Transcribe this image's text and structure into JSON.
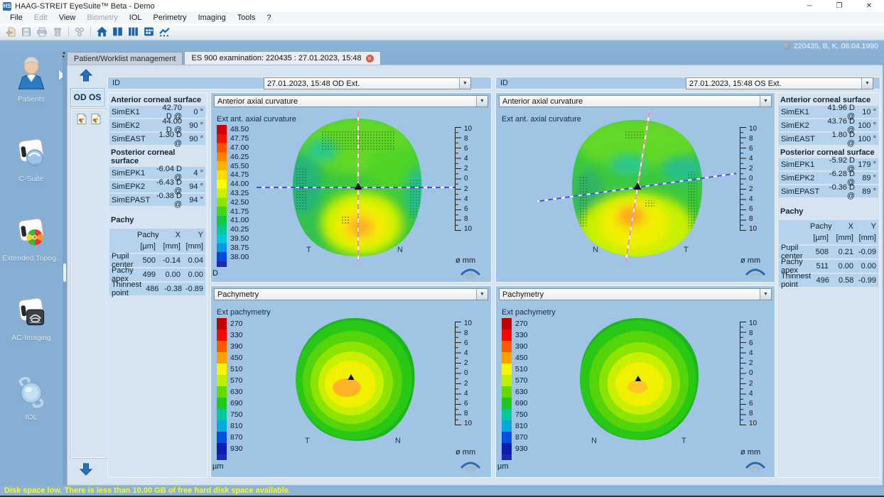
{
  "window": {
    "title": "HAAG-STREIT EyeSuite™   Beta   -   Demo",
    "logo": "HS",
    "controls": {
      "minimize": "─",
      "maximize": "❐",
      "close": "✕"
    }
  },
  "menu": {
    "items": [
      {
        "label": "File",
        "enabled": true
      },
      {
        "label": "Edit",
        "enabled": false
      },
      {
        "label": "View",
        "enabled": true
      },
      {
        "label": "Biometry",
        "enabled": false
      },
      {
        "label": "IOL",
        "enabled": true
      },
      {
        "label": "Perimetry",
        "enabled": true
      },
      {
        "label": "Imaging",
        "enabled": true
      },
      {
        "label": "Tools",
        "enabled": true
      },
      {
        "label": "?",
        "enabled": true
      }
    ]
  },
  "patient_bar": {
    "info": "220435, B, K, 08.04.1990"
  },
  "tabs": {
    "worklist": "Patient/Worklist management",
    "exam": "ES 900 examination: 220435 : 27.01.2023, 15:48"
  },
  "sidebar": {
    "items": [
      {
        "label": "Patients"
      },
      {
        "label": "C-Suite"
      },
      {
        "label": "Extended Topog.."
      },
      {
        "label": "AC-Imaging"
      },
      {
        "label": "IOL"
      }
    ]
  },
  "nav": {
    "od_os": "OD OS"
  },
  "od": {
    "id_label": "ID",
    "exam": "27.01.2023, 15:48 OD Ext.",
    "anterior_title": "Anterior corneal surface",
    "anterior": [
      {
        "name": "SimEK1",
        "value": "42.70 D @",
        "angle": "0 °"
      },
      {
        "name": "SimEK2",
        "value": "44.00 D @",
        "angle": "90 °"
      },
      {
        "name": "SimEAST",
        "value": "1.30 D @",
        "angle": "90 °"
      }
    ],
    "posterior_title": "Posterior corneal surface",
    "posterior": [
      {
        "name": "SimEPK1",
        "value": "-6.04 D @",
        "angle": "4 °"
      },
      {
        "name": "SimEPK2",
        "value": "-6.43 D @",
        "angle": "94 °"
      },
      {
        "name": "SimEPAST",
        "value": "-0.38 D @",
        "angle": "94 °"
      }
    ],
    "pachy_title": "Pachy",
    "pachy_cols": {
      "c1": "Pachy",
      "c2": "X",
      "c3": "Y",
      "u1": "[µm]",
      "u2": "[mm]",
      "u3": "[mm]"
    },
    "pachy": [
      {
        "name": "Pupil center",
        "p": "500",
        "x": "-0.14",
        "y": "0.04"
      },
      {
        "name": "Pachy apex",
        "p": "499",
        "x": "0.00",
        "y": "0.00"
      },
      {
        "name": "Thinnest point",
        "p": "486",
        "x": "-0.38",
        "y": "-0.89"
      }
    ],
    "axial_select": "Anterior axial curvature",
    "axial_title": "Ext ant. axial curvature",
    "pachy_select": "Pachymetry",
    "pachy_map_title": "Ext pachymetry",
    "t_label": "T",
    "n_label": "N"
  },
  "os": {
    "id_label": "ID",
    "exam": "27.01.2023, 15:48 OS Ext.",
    "anterior_title": "Anterior corneal surface",
    "anterior": [
      {
        "name": "SimEK1",
        "value": "41.96 D @",
        "angle": "10 °"
      },
      {
        "name": "SimEK2",
        "value": "43.76 D @",
        "angle": "100 °"
      },
      {
        "name": "SimEAST",
        "value": "1.80 D @",
        "angle": "100 °"
      }
    ],
    "posterior_title": "Posterior corneal surface",
    "posterior": [
      {
        "name": "SimEPK1",
        "value": "-5.92 D @",
        "angle": "179 °"
      },
      {
        "name": "SimEPK2",
        "value": "-6.28 D @",
        "angle": "89 °"
      },
      {
        "name": "SimEPAST",
        "value": "-0.36 D @",
        "angle": "89 °"
      }
    ],
    "pachy_title": "Pachy",
    "pachy_cols": {
      "c1": "Pachy",
      "c2": "X",
      "c3": "Y",
      "u1": "[µm]",
      "u2": "[mm]",
      "u3": "[mm]"
    },
    "pachy": [
      {
        "name": "Pupil center",
        "p": "508",
        "x": "0.21",
        "y": "-0.09"
      },
      {
        "name": "Pachy apex",
        "p": "511",
        "x": "0.00",
        "y": "0.00"
      },
      {
        "name": "Thinnest point",
        "p": "496",
        "x": "0.58",
        "y": "-0.99"
      }
    ],
    "axial_select": "Anterior axial curvature",
    "axial_title": "Ext ant. axial curvature",
    "pachy_select": "Pachymetry",
    "pachy_map_title": "Ext pachymetry",
    "t_label": "T",
    "n_label": "N"
  },
  "scales": {
    "axial": {
      "ticks": [
        "48.50",
        "47.75",
        "47.00",
        "46.25",
        "45.50",
        "44.75",
        "44.00",
        "43.25",
        "42.50",
        "41.75",
        "41.00",
        "40.25",
        "39.50",
        "38.75",
        "38.00"
      ],
      "unit": "D"
    },
    "pachy": {
      "ticks": [
        "270",
        "330",
        "390",
        "450",
        "510",
        "570",
        "630",
        "690",
        "750",
        "810",
        "870",
        "930"
      ],
      "unit": "µm"
    },
    "ruler": {
      "ticks": [
        "10",
        "8",
        "6",
        "4",
        "2",
        "0",
        "2",
        "4",
        "6",
        "8",
        "10"
      ],
      "unit": "ø mm"
    }
  },
  "status_bar": {
    "message": "Disk space low. There is less than 10.00 GB of free hard disk space available."
  },
  "chart_data": [
    {
      "type": "heatmap",
      "eye": "OD",
      "title": "Ext ant. axial curvature",
      "unit": "D",
      "scale_range": [
        38.0,
        48.5
      ],
      "scale_step": 0.75,
      "orientation_labels": [
        "T",
        "N"
      ],
      "axis_unit": "ø mm",
      "axis_range": [
        -10,
        10
      ],
      "summary": "Mostly 41-44 D green cornea with inferior-central steep zone ~45-46 D (yellow-orange) near (-0.1,-0.9) mm; flat meridian marker at 0° (blue dashed), steep at 90° (red dash-dot)."
    },
    {
      "type": "heatmap",
      "eye": "OS",
      "title": "Ext ant. axial curvature",
      "unit": "D",
      "scale_range": [
        38.0,
        48.5
      ],
      "scale_step": 0.75,
      "orientation_labels": [
        "N",
        "T"
      ],
      "axis_unit": "ø mm",
      "axis_range": [
        -10,
        10
      ],
      "summary": "Mostly 41-44 D with inferior yellow steepening and small orange zone; flat meridian marker at 10° (blue dashed), steep at 100° (red dash-dot)."
    },
    {
      "type": "heatmap",
      "eye": "OD",
      "title": "Ext pachymetry",
      "unit": "µm",
      "scale_range": [
        270,
        930
      ],
      "scale_step": 60,
      "orientation_labels": [
        "T",
        "N"
      ],
      "axis_unit": "ø mm",
      "axis_range": [
        -10,
        10
      ],
      "summary": "Concentric thickness map: ~630 µm green periphery thinning to ~490-500 µm yellow-orange center; thinnest point 486 µm at (-0.38,-0.89)."
    },
    {
      "type": "heatmap",
      "eye": "OS",
      "title": "Ext pachymetry",
      "unit": "µm",
      "scale_range": [
        270,
        930
      ],
      "scale_step": 60,
      "orientation_labels": [
        "N",
        "T"
      ],
      "axis_unit": "ø mm",
      "axis_range": [
        -10,
        10
      ],
      "summary": "Concentric thickness map: green periphery thinning to ~500-510 µm yellow center; thinnest point 496 µm at (0.58,-0.99)."
    }
  ]
}
